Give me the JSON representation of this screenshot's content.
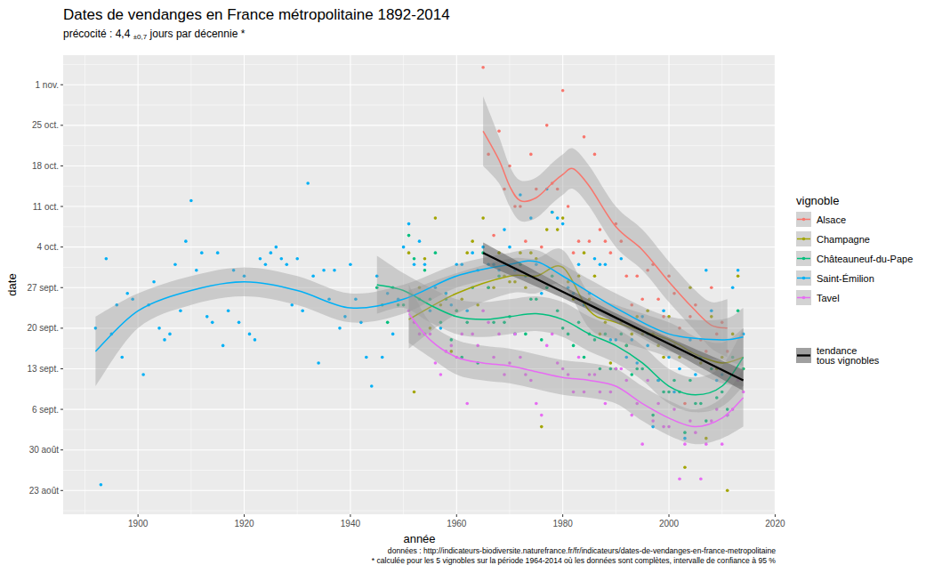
{
  "chart_data": {
    "type": "scatter",
    "title": "Dates de vendanges en France métropolitaine 1892-2014",
    "subtitle": "précocité : 4,4",
    "subtitle_ci": "±0,7",
    "subtitle_unit": "jours par décennie *",
    "x_label": "année",
    "y_label": "date",
    "legend_title": "vignoble",
    "captions": [
      "données : http://indicateurs-biodiversite.naturefrance.fr/fr/indicateurs/dates-de-vendanges-en-france-metropolitaine",
      "* calculée pour les 5 vignobles sur la période 1964-2014 où les données sont complètes, intervalle de confiance à 95 %"
    ],
    "xlim": [
      1885.9,
      2020.1
    ],
    "ylim": [
      230.9,
      310.1
    ],
    "xticks": [
      1900,
      1920,
      1940,
      1960,
      1980,
      2000,
      2020
    ],
    "yticks": [
      {
        "value": 235,
        "label": "23 août"
      },
      {
        "value": 242,
        "label": "30 août"
      },
      {
        "value": 249,
        "label": "6 sept."
      },
      {
        "value": 256,
        "label": "13 sept."
      },
      {
        "value": 263,
        "label": "20 sept."
      },
      {
        "value": 270,
        "label": "27 sept."
      },
      {
        "value": 277,
        "label": "4 oct."
      },
      {
        "value": 284,
        "label": "11 oct."
      },
      {
        "value": 291,
        "label": "18 oct."
      },
      {
        "value": 298,
        "label": "25 oct."
      },
      {
        "value": 305,
        "label": "1 nov."
      }
    ],
    "grid": true,
    "legend": "right",
    "series": [
      {
        "name": "Alsace",
        "color": "#F8766D",
        "x": [
          1965,
          1966,
          1967,
          1968,
          1969,
          1970,
          1971,
          1972,
          1973,
          1974,
          1975,
          1976,
          1977,
          1978,
          1979,
          1980,
          1981,
          1982,
          1983,
          1984,
          1985,
          1986,
          1987,
          1988,
          1989,
          1990,
          1991,
          1992,
          1993,
          1994,
          1995,
          1996,
          1997,
          1998,
          1999,
          2000,
          2001,
          2002,
          2003,
          2004,
          2005,
          2006,
          2007,
          2008,
          2009,
          2010,
          2011
        ],
        "values": [
          308,
          293,
          279,
          297,
          287,
          291,
          284,
          284,
          278,
          293,
          287,
          277,
          298,
          288,
          287,
          304,
          284,
          276,
          278,
          296,
          278,
          293,
          280,
          278,
          276,
          281,
          278,
          272,
          267,
          272,
          268,
          273,
          274,
          268,
          265,
          272,
          269,
          263,
          250,
          265,
          267,
          261,
          259,
          270,
          262,
          264,
          259
        ],
        "smooth": {
          "x": [
            1965,
            1968,
            1970,
            1972,
            1975,
            1978,
            1980,
            1982,
            1985,
            1990,
            1995,
            2000,
            2005,
            2008,
            2011
          ],
          "values": [
            297,
            292,
            287.5,
            285,
            285.5,
            288,
            289.5,
            290.5,
            287.5,
            280.5,
            276.5,
            271,
            266,
            263.5,
            263
          ],
          "low": [
            291,
            288,
            284,
            281.5,
            282,
            284.5,
            286,
            287,
            284,
            277,
            273,
            267.5,
            262.5,
            259.5,
            258
          ],
          "high": [
            303,
            296,
            291,
            288.5,
            289,
            291.5,
            293,
            294,
            291,
            284,
            280,
            274.5,
            269.5,
            267.5,
            268
          ]
        }
      },
      {
        "name": "Champagne",
        "color": "#A3A500",
        "x": [
          1951,
          1952,
          1953,
          1954,
          1955,
          1956,
          1957,
          1958,
          1959,
          1960,
          1961,
          1962,
          1963,
          1964,
          1965,
          1966,
          1967,
          1968,
          1969,
          1970,
          1971,
          1972,
          1973,
          1974,
          1975,
          1976,
          1977,
          1978,
          1979,
          1980,
          1981,
          1982,
          1983,
          1984,
          1985,
          1986,
          1987,
          1988,
          1989,
          1990,
          1991,
          1992,
          1993,
          1994,
          1995,
          1996,
          1997,
          1998,
          1999,
          2000,
          2001,
          2002,
          2003,
          2004,
          2005,
          2006,
          2007,
          2008,
          2009,
          2010,
          2011,
          2012,
          2013,
          2014
        ],
        "values": [
          276,
          252,
          270,
          275,
          263,
          282,
          267,
          269,
          259,
          266,
          268,
          276,
          278,
          267,
          282,
          270,
          270,
          276,
          272,
          271,
          271,
          276,
          270,
          276,
          275,
          246,
          280,
          283,
          280,
          282,
          271,
          268,
          272,
          276,
          268,
          272,
          262,
          264,
          257,
          256,
          264,
          260,
          262,
          265,
          262,
          266,
          262,
          260,
          258,
          265,
          260,
          258,
          239,
          270,
          258,
          257,
          244,
          265,
          256,
          258,
          235,
          262,
          272,
          256
        ],
        "smooth": {
          "x": [
            1951,
            1960,
            1970,
            1975,
            1980,
            1985,
            1990,
            2000,
            2005,
            2010,
            2014
          ],
          "values": [
            264.5,
            269,
            272,
            272,
            273.5,
            266,
            264,
            261,
            258.5,
            257,
            258
          ],
          "low": [
            259.5,
            265.5,
            269,
            269,
            270.5,
            263,
            261,
            258,
            255.5,
            253.5,
            253
          ],
          "high": [
            269.5,
            272.5,
            275,
            275,
            276.5,
            269,
            267,
            264,
            261.5,
            260.5,
            263
          ]
        }
      },
      {
        "name": "Châteauneuf-du-Pape",
        "color": "#00BF7D",
        "x": [
          1945,
          1946,
          1947,
          1948,
          1949,
          1950,
          1951,
          1952,
          1953,
          1954,
          1955,
          1956,
          1957,
          1958,
          1959,
          1960,
          1961,
          1962,
          1963,
          1964,
          1965,
          1966,
          1967,
          1968,
          1969,
          1970,
          1971,
          1972,
          1973,
          1974,
          1975,
          1976,
          1977,
          1978,
          1979,
          1980,
          1981,
          1982,
          1983,
          1984,
          1985,
          1986,
          1987,
          1988,
          1989,
          1990,
          1991,
          1992,
          1993,
          1994,
          1995,
          1996,
          1997,
          1998,
          1999,
          2000,
          2001,
          2002,
          2003,
          2004,
          2005,
          2006,
          2007,
          2008,
          2009,
          2010,
          2011,
          2012,
          2013,
          2014
        ],
        "values": [
          270,
          267,
          264,
          270,
          267,
          267,
          279,
          275,
          268,
          273,
          268,
          276,
          264,
          268,
          261,
          266,
          258,
          264,
          270,
          257,
          276,
          270,
          264,
          272,
          264,
          265,
          262,
          274,
          262,
          268,
          268,
          261,
          270,
          272,
          266,
          263,
          262,
          260,
          264,
          258,
          262,
          261,
          256,
          262,
          256,
          256,
          262,
          260,
          255,
          256,
          256,
          262,
          248,
          254,
          252,
          252,
          254,
          252,
          245,
          254,
          250,
          250,
          247,
          256,
          251,
          252,
          249,
          258,
          266,
          256
        ],
        "smooth": {
          "x": [
            1945,
            1950,
            1955,
            1960,
            1965,
            1970,
            1975,
            1980,
            1985,
            1990,
            1995,
            2000,
            2005,
            2010,
            2014
          ],
          "values": [
            270.5,
            269.5,
            267,
            265,
            264.5,
            265,
            265.5,
            264.5,
            262,
            260,
            257,
            253,
            251.5,
            253,
            258
          ],
          "low": [
            265.5,
            266.5,
            264,
            262,
            261.5,
            262,
            262.5,
            261.5,
            259,
            257,
            254,
            250,
            248.5,
            249.5,
            253
          ],
          "high": [
            275.5,
            272.5,
            270,
            268,
            267.5,
            268,
            268.5,
            267.5,
            265,
            263,
            260,
            256,
            254.5,
            256.5,
            263
          ]
        }
      },
      {
        "name": "Saint-Émilion",
        "color": "#00B0F6",
        "x": [
          1892,
          1893,
          1894,
          1895,
          1896,
          1897,
          1898,
          1899,
          1901,
          1902,
          1903,
          1904,
          1905,
          1906,
          1907,
          1908,
          1909,
          1910,
          1911,
          1912,
          1913,
          1914,
          1915,
          1916,
          1917,
          1918,
          1919,
          1920,
          1921,
          1922,
          1923,
          1924,
          1925,
          1926,
          1927,
          1928,
          1929,
          1930,
          1931,
          1932,
          1933,
          1934,
          1935,
          1936,
          1937,
          1938,
          1939,
          1940,
          1941,
          1942,
          1943,
          1944,
          1945,
          1946,
          1947,
          1948,
          1949,
          1950,
          1951,
          1952,
          1953,
          1954,
          1955,
          1956,
          1957,
          1958,
          1959,
          1960,
          1961,
          1962,
          1963,
          1964,
          1965,
          1966,
          1967,
          1968,
          1969,
          1970,
          1971,
          1972,
          1973,
          1974,
          1975,
          1976,
          1977,
          1978,
          1979,
          1980,
          1981,
          1982,
          1983,
          1984,
          1985,
          1986,
          1987,
          1988,
          1989,
          1990,
          1991,
          1992,
          1993,
          1994,
          1995,
          1996,
          1997,
          1998,
          1999,
          2000,
          2001,
          2002,
          2003,
          2004,
          2005,
          2006,
          2007,
          2008,
          2009,
          2010,
          2011,
          2012,
          2013,
          2014
        ],
        "values": [
          263,
          236,
          275,
          262,
          267,
          258,
          269,
          268,
          255,
          267,
          271,
          263,
          261,
          262,
          274,
          266,
          278,
          285,
          273,
          276,
          265,
          264,
          276,
          260,
          266,
          273,
          264,
          272,
          262,
          261,
          275,
          274,
          276,
          277,
          275,
          274,
          267,
          275,
          266,
          288,
          272,
          257,
          273,
          268,
          273,
          263,
          265,
          274,
          268,
          264,
          258,
          253,
          272,
          258,
          269,
          262,
          268,
          277,
          281,
          274,
          278,
          274,
          266,
          270,
          263,
          269,
          267,
          274,
          274,
          266,
          276,
          273,
          277,
          274,
          274,
          273,
          280,
          277,
          273,
          286,
          272,
          282,
          274,
          269,
          287,
          283,
          282,
          281,
          270,
          269,
          274,
          267,
          269,
          275,
          274,
          274,
          261,
          261,
          275,
          258,
          261,
          257,
          265,
          260,
          246,
          254,
          266,
          258,
          252,
          256,
          244,
          261,
          255,
          258,
          273,
          266,
          254,
          255,
          248,
          270,
          273,
          262
        ],
        "smooth": {
          "x": [
            1892,
            1900,
            1910,
            1920,
            1930,
            1940,
            1950,
            1960,
            1970,
            1975,
            1980,
            1990,
            2000,
            2010,
            2014
          ],
          "values": [
            259,
            266,
            269.5,
            271,
            269.5,
            266.5,
            268,
            272,
            274,
            274.5,
            272,
            266.5,
            262,
            261,
            261.5
          ],
          "low": [
            253,
            263,
            267,
            268.5,
            267,
            264,
            265.5,
            270,
            272,
            272.5,
            270,
            264,
            259,
            257.5,
            256.5
          ],
          "high": [
            265,
            269,
            272,
            273.5,
            272,
            269,
            270.5,
            274,
            276,
            276.5,
            274,
            269,
            265,
            264.5,
            266.5
          ]
        }
      },
      {
        "name": "Tavel",
        "color": "#E76BF3",
        "x": [
          1951,
          1952,
          1953,
          1954,
          1955,
          1956,
          1957,
          1958,
          1959,
          1960,
          1961,
          1962,
          1963,
          1964,
          1965,
          1966,
          1967,
          1968,
          1969,
          1970,
          1971,
          1972,
          1973,
          1974,
          1975,
          1976,
          1977,
          1978,
          1979,
          1980,
          1981,
          1982,
          1983,
          1984,
          1985,
          1986,
          1987,
          1988,
          1989,
          1990,
          1991,
          1992,
          1993,
          1994,
          1995,
          1996,
          1997,
          1998,
          1999,
          2000,
          2001,
          2002,
          2003,
          2004,
          2005,
          2006,
          2007,
          2008,
          2009,
          2010,
          2011,
          2012,
          2013,
          2014
        ],
        "values": [
          266,
          264,
          262,
          262,
          262,
          257,
          255,
          259,
          260,
          258,
          262,
          250,
          262,
          260,
          266,
          264,
          258,
          262,
          255,
          257,
          262,
          258,
          255,
          254,
          250,
          248,
          260,
          262,
          257,
          256,
          255,
          252,
          258,
          252,
          255,
          255,
          252,
          250,
          252,
          256,
          256,
          254,
          248,
          250,
          243,
          254,
          247,
          250,
          246,
          246,
          249,
          237,
          243,
          247,
          245,
          237,
          243,
          247,
          249,
          243,
          248,
          249,
          254,
          252
        ],
        "smooth": {
          "x": [
            1951,
            1955,
            1960,
            1965,
            1970,
            1975,
            1980,
            1985,
            1990,
            1995,
            2000,
            2005,
            2010,
            2014
          ],
          "values": [
            265.5,
            261,
            258,
            257,
            256.5,
            255.5,
            254.5,
            254,
            253,
            250,
            247.5,
            246,
            247.5,
            251
          ],
          "low": [
            260.5,
            258,
            255,
            254,
            253.5,
            252.5,
            251.5,
            251,
            250,
            247,
            244.5,
            243,
            244,
            246
          ],
          "high": [
            270.5,
            264,
            261,
            260,
            259.5,
            258.5,
            257.5,
            257,
            256,
            253,
            250.5,
            249,
            251,
            256
          ]
        }
      }
    ],
    "trend": {
      "name": "tendance tous vignobles",
      "color": "#000000",
      "x": [
        1965,
        1990,
        2014
      ],
      "values": [
        276,
        264.8,
        254
      ],
      "low": [
        274.2,
        264,
        252.2
      ],
      "high": [
        277.8,
        265.6,
        255.8
      ]
    }
  }
}
